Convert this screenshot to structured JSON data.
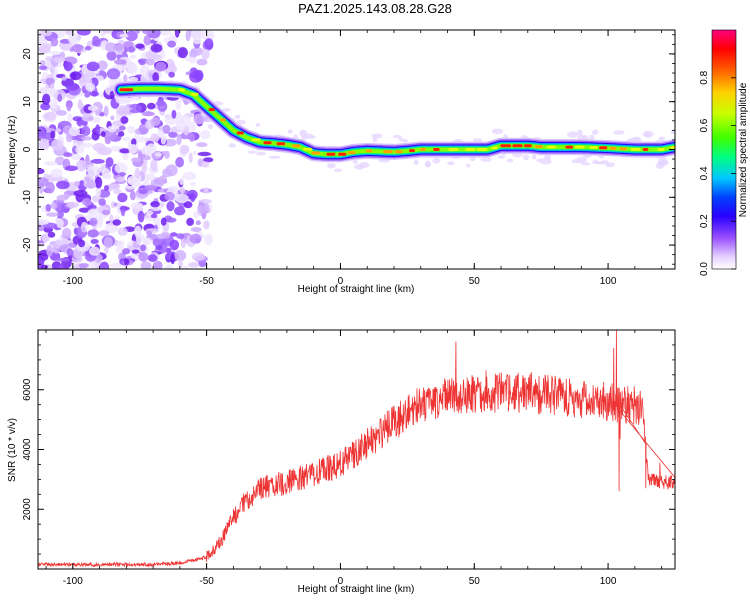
{
  "title": "PAZ1.2025.143.08.28.G28",
  "chart_data": [
    {
      "type": "heatmap",
      "xlabel": "Height of straight line (km)",
      "ylabel": "Frequency (Hz)",
      "xlim": [
        -113,
        125
      ],
      "ylim": [
        -25,
        25
      ],
      "x_ticks": [
        -100,
        -50,
        0,
        50,
        100
      ],
      "x_tick_labels": [
        "-100",
        "-50",
        "0",
        "50",
        "100"
      ],
      "y_ticks": [
        -20,
        -10,
        0,
        10,
        20
      ],
      "y_tick_labels": [
        "-20",
        "-10",
        "0",
        "10",
        "20"
      ],
      "colorbar": {
        "label": "Normalized spectral amplitude",
        "range": [
          0,
          1
        ],
        "ticks": [
          0.0,
          0.2,
          0.4,
          0.6,
          0.8
        ],
        "tick_labels": [
          "0.0",
          "0.2",
          "0.4",
          "0.6",
          "0.8"
        ]
      },
      "ridge": {
        "x": [
          -82,
          -75,
          -68,
          -60,
          -55,
          -50,
          -45,
          -40,
          -35,
          -30,
          -25,
          -20,
          -15,
          -10,
          -5,
          0,
          5,
          10,
          20,
          25,
          30,
          40,
          50,
          55,
          60,
          70,
          75,
          80,
          90,
          100,
          110,
          120,
          125
        ],
        "y": [
          12.5,
          12.7,
          12.7,
          12.5,
          11.5,
          9,
          6.5,
          4,
          2.5,
          1.5,
          1.3,
          1,
          0.5,
          -0.8,
          -1,
          -1,
          -0.5,
          -0.3,
          -0.5,
          -0.3,
          0,
          0,
          0,
          0,
          0.8,
          0.8,
          0.5,
          0.5,
          0.5,
          0.3,
          0,
          0,
          0.5
        ]
      },
      "noise_region_x": [
        -113,
        -55
      ]
    },
    {
      "type": "line",
      "xlabel": "Height of straight line (km)",
      "ylabel": "SNR (10 * v/v)",
      "xlim": [
        -113,
        125
      ],
      "ylim": [
        0,
        8000
      ],
      "x_ticks": [
        -100,
        -50,
        0,
        50,
        100
      ],
      "x_tick_labels": [
        "-100",
        "-50",
        "0",
        "50",
        "100"
      ],
      "y_ticks": [
        2000,
        4000,
        6000
      ],
      "y_tick_labels": [
        "2000",
        "4000",
        "6000"
      ],
      "color": "#ee3333",
      "envelope": {
        "x": [
          -113,
          -70,
          -60,
          -50,
          -45,
          -40,
          -35,
          -30,
          -20,
          -10,
          0,
          10,
          20,
          30,
          40,
          50,
          60,
          70,
          80,
          90,
          100,
          105,
          110,
          113,
          115,
          120,
          125
        ],
        "y": [
          150,
          150,
          200,
          400,
          900,
          1700,
          2300,
          2700,
          2900,
          3200,
          3500,
          4200,
          4900,
          5500,
          5800,
          5900,
          5900,
          5900,
          5800,
          5700,
          5600,
          5500,
          5500,
          5400,
          3000,
          2900,
          2900
        ]
      },
      "spikes": [
        {
          "x": 102,
          "y": 7400
        },
        {
          "x": 103,
          "y": 8000
        },
        {
          "x": 104,
          "y": 2600
        },
        {
          "x": 114,
          "y": 2700
        }
      ]
    }
  ]
}
